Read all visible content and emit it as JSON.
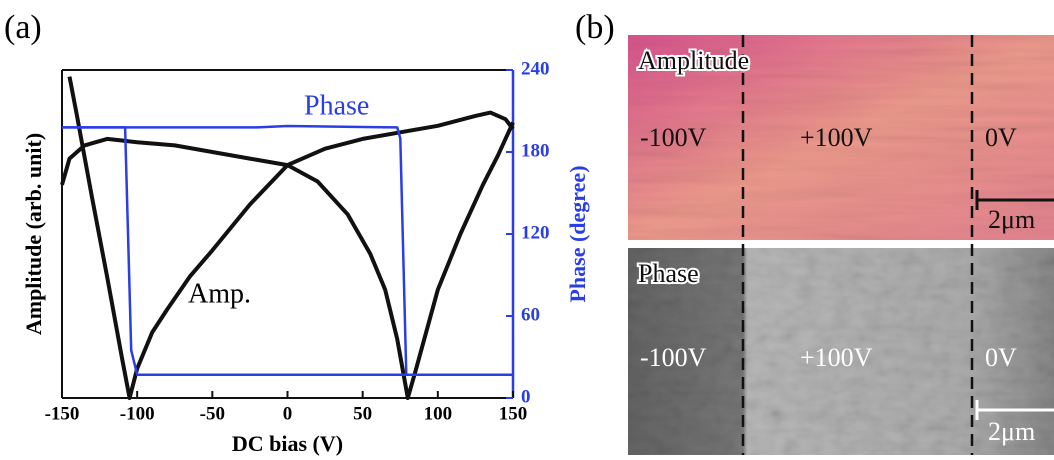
{
  "chart_data": {
    "type": "line",
    "panel_label": "(a)",
    "xlabel": "DC bias (V)",
    "ylabel": "Amplitude (arb. unit)",
    "y2label": "Phase (degree)",
    "xlim": [
      -150,
      150
    ],
    "xticks": [
      -150,
      -100,
      -50,
      0,
      50,
      100,
      150
    ],
    "ylim": [
      0,
      1
    ],
    "y2lim": [
      0,
      240
    ],
    "y2ticks": [
      0,
      60,
      120,
      180,
      240
    ],
    "annotations": [
      "Amp.",
      "Phase"
    ],
    "series": [
      {
        "color": "#111111",
        "x": [
          -145,
          -140,
          -130,
          -120,
          -110,
          -105,
          -100,
          -90,
          -80,
          -65,
          -50,
          -25,
          0,
          25,
          50,
          75,
          100,
          125,
          135,
          145,
          150
        ],
        "values": [
          0.98,
          0.86,
          0.61,
          0.37,
          0.12,
          0.0,
          0.09,
          0.2,
          0.27,
          0.37,
          0.45,
          0.59,
          0.71,
          0.76,
          0.79,
          0.81,
          0.83,
          0.86,
          0.87,
          0.85,
          0.82
        ]
      },
      {
        "color": "#111111",
        "x": [
          -150,
          -145,
          -135,
          -120,
          -100,
          -75,
          -50,
          -25,
          0,
          20,
          40,
          55,
          65,
          73,
          80,
          85,
          100,
          115,
          130,
          140,
          150
        ],
        "values": [
          0.65,
          0.73,
          0.77,
          0.79,
          0.78,
          0.77,
          0.75,
          0.73,
          0.71,
          0.66,
          0.56,
          0.44,
          0.33,
          0.18,
          0.0,
          0.08,
          0.33,
          0.5,
          0.65,
          0.74,
          0.84
        ]
      },
      {
        "color": "#2a3ee6",
        "axis": "y2",
        "x": [
          150,
          -100,
          -104,
          -108,
          -150
        ],
        "values": [
          17,
          17,
          35,
          198,
          198
        ]
      },
      {
        "color": "#2a3ee6",
        "axis": "y2",
        "x": [
          -150,
          -20,
          0,
          73,
          75,
          79,
          150
        ],
        "values": [
          198,
          198,
          199,
          198,
          190,
          17,
          17
        ]
      }
    ]
  },
  "images": {
    "panel_label": "(b)",
    "amplitude": {
      "title": "Amplitude",
      "regions": [
        "-100V",
        "+100V",
        "0V"
      ],
      "scale": "2μm"
    },
    "phase": {
      "title": "Phase",
      "regions": [
        "-100V",
        "+100V",
        "0V"
      ],
      "scale": "2μm"
    }
  }
}
